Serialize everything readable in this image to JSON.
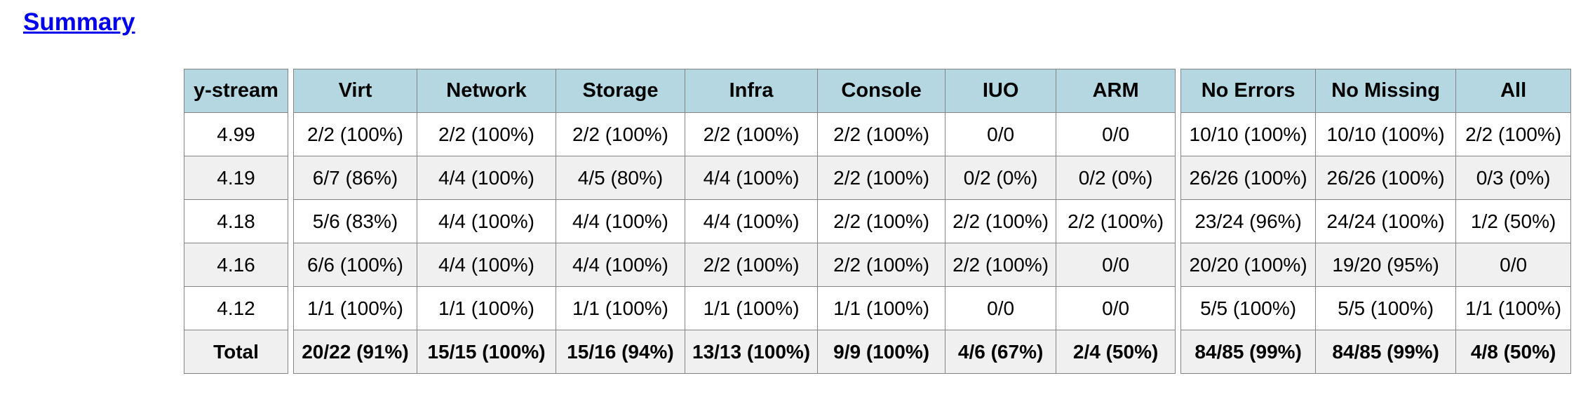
{
  "page": {
    "heading": "Summary",
    "background": "#ffffff"
  },
  "colors": {
    "header_bg": "#b4d7e2",
    "row_bg": "#ffffff",
    "row_alt_bg": "#f0f0f0",
    "border": "#848484",
    "link": "#0000ee",
    "text": "#000000"
  },
  "summary_table": {
    "columns": [
      "y-stream",
      "Virt",
      "Network",
      "Storage",
      "Infra",
      "Console",
      "IUO",
      "ARM",
      "No Errors",
      "No Missing",
      "All"
    ],
    "rows": [
      [
        "4.99",
        "2/2 (100%)",
        "2/2 (100%)",
        "2/2 (100%)",
        "2/2 (100%)",
        "2/2 (100%)",
        "0/0",
        "0/0",
        "10/10 (100%)",
        "10/10 (100%)",
        "2/2 (100%)"
      ],
      [
        "4.19",
        "6/7 (86%)",
        "4/4 (100%)",
        "4/5 (80%)",
        "4/4 (100%)",
        "2/2 (100%)",
        "0/2 (0%)",
        "0/2 (0%)",
        "26/26 (100%)",
        "26/26 (100%)",
        "0/3 (0%)"
      ],
      [
        "4.18",
        "5/6 (83%)",
        "4/4 (100%)",
        "4/4 (100%)",
        "4/4 (100%)",
        "2/2 (100%)",
        "2/2 (100%)",
        "2/2 (100%)",
        "23/24 (96%)",
        "24/24 (100%)",
        "1/2 (50%)"
      ],
      [
        "4.16",
        "6/6 (100%)",
        "4/4 (100%)",
        "4/4 (100%)",
        "2/2 (100%)",
        "2/2 (100%)",
        "2/2 (100%)",
        "0/0",
        "20/20 (100%)",
        "19/20 (95%)",
        "0/0"
      ],
      [
        "4.12",
        "1/1 (100%)",
        "1/1 (100%)",
        "1/1 (100%)",
        "1/1 (100%)",
        "1/1 (100%)",
        "0/0",
        "0/0",
        "5/5 (100%)",
        "5/5 (100%)",
        "1/1 (100%)"
      ],
      [
        "Total",
        "20/22 (91%)",
        "15/15 (100%)",
        "15/16 (94%)",
        "13/13 (100%)",
        "9/9 (100%)",
        "4/6 (67%)",
        "2/4 (50%)",
        "84/85 (99%)",
        "84/85 (99%)",
        "4/8 (50%)"
      ]
    ]
  }
}
